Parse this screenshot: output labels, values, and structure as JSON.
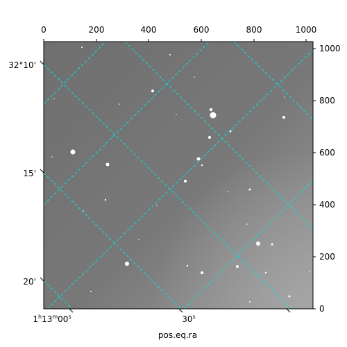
{
  "figure": {
    "xlabel": "pos.eq.ra",
    "top_ticks": [
      "0",
      "200",
      "400",
      "600",
      "800",
      "1000"
    ],
    "right_ticks": [
      "0",
      "200",
      "400",
      "600",
      "800",
      "1000"
    ],
    "dec_ticks": [
      "32°10'",
      "15'",
      "20'"
    ],
    "ra_ticks": {
      "first": {
        "h": "1",
        "h_unit": "h",
        "m": "13",
        "m_unit": "m",
        "s": "00",
        "s_unit": "s"
      },
      "second": {
        "s": "30",
        "s_unit": "s"
      }
    },
    "colors": {
      "sky": "#7a7a7a",
      "grid_lines": "#00e5e5",
      "stars": "#ffffff"
    },
    "pixel_range": [
      0,
      1024
    ],
    "grid_style": "dashed"
  }
}
